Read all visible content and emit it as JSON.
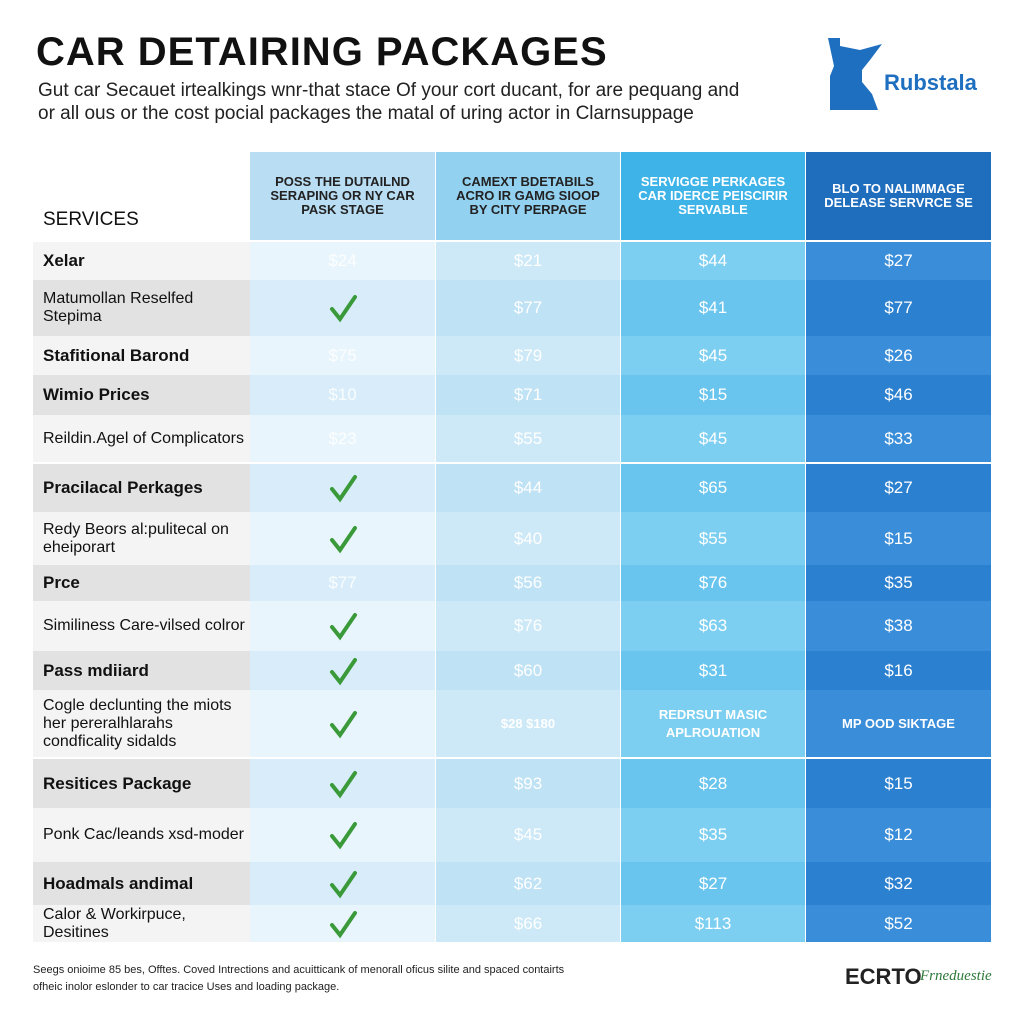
{
  "header": {
    "title": "CAR DETAIRING PACKAGES",
    "subtitle": [
      "Gut car Secauet irtealkings wnr-that stace Of your cort ducant, for are pequang and",
      "or all ous or the cost pocial packages the matal of uring actor in Clarnsuppage"
    ],
    "logo": "Rubstala"
  },
  "table": {
    "services_label": "SERVICES",
    "columns": [
      "POSS THE DUTAILND SERAPING OR NY CAR PASK STAGE",
      "CAMEXT BDETABILS ACRO IR GAMG SIOOP BY CITY PERPAGE",
      "SERVIGGE PERKAGES CAR IDERCE PEISCIRIR SERVABLE",
      "BLO TO NALIMMAGE DELEASE SERVRCE SE"
    ],
    "rows": [
      {
        "label": "Xelar",
        "cells": [
          "$24",
          "$21",
          "$44",
          "$27"
        ]
      },
      {
        "label": "Matumollan Reselfed Stepima",
        "cells": [
          null,
          "$77",
          "$41",
          "$77"
        ]
      },
      {
        "label": "Stafitional Barond",
        "cells": [
          "$75",
          "$79",
          "$45",
          "$26"
        ]
      },
      {
        "label": "Wimio Prices",
        "cells": [
          "$10",
          "$71",
          "$15",
          "$46"
        ]
      },
      {
        "label": "Reildin.Agel of Complicators",
        "cells": [
          "$23",
          "$55",
          "$45",
          "$33"
        ]
      },
      {
        "label": "Pracilacal Perkages",
        "cells": [
          null,
          "$44",
          "$65",
          "$27"
        ]
      },
      {
        "label": "Redy Beors al:pulitecal on eheiporart",
        "cells": [
          null,
          "$40",
          "$55",
          "$15"
        ]
      },
      {
        "label": "Prce",
        "cells": [
          "$77",
          "$56",
          "$76",
          "$35"
        ]
      },
      {
        "label": "Similiness Care-vilsed colror",
        "cells": [
          null,
          "$76",
          "$63",
          "$38"
        ]
      },
      {
        "label": "Pass mdiiard",
        "cells": [
          null,
          "$60",
          "$31",
          "$16"
        ]
      },
      {
        "label": "Cogle declunting the miots her pereralhlarahs condficality sidalds",
        "cells": [
          null,
          "$28 $180",
          "REDRSUT MASIC APLROUATION",
          "MP OOD SIKTAGE"
        ]
      },
      {
        "label": "Resitices Package",
        "cells": [
          null,
          "$93",
          "$28",
          "$15"
        ]
      },
      {
        "label": "Ponk Cac/leands xsd-moder",
        "cells": [
          null,
          "$45",
          "$35",
          "$12"
        ]
      },
      {
        "label": "Hoadmals andimal",
        "cells": [
          null,
          "$62",
          "$27",
          "$32"
        ]
      },
      {
        "label": "Calor & Workirpuce, Desitines",
        "cells": [
          null,
          "$66",
          "$113",
          "$52"
        ]
      }
    ]
  },
  "footer": {
    "text": [
      "Seegs onioime 85 bes, Offtes. Coved Intrections and acuitticank of menorall oficus silite and spaced contairts",
      "ofheic inolor eslonder to car tracice Uses and loading package."
    ],
    "logo": "ECRTO",
    "logo_script": "Frneduestie"
  }
}
